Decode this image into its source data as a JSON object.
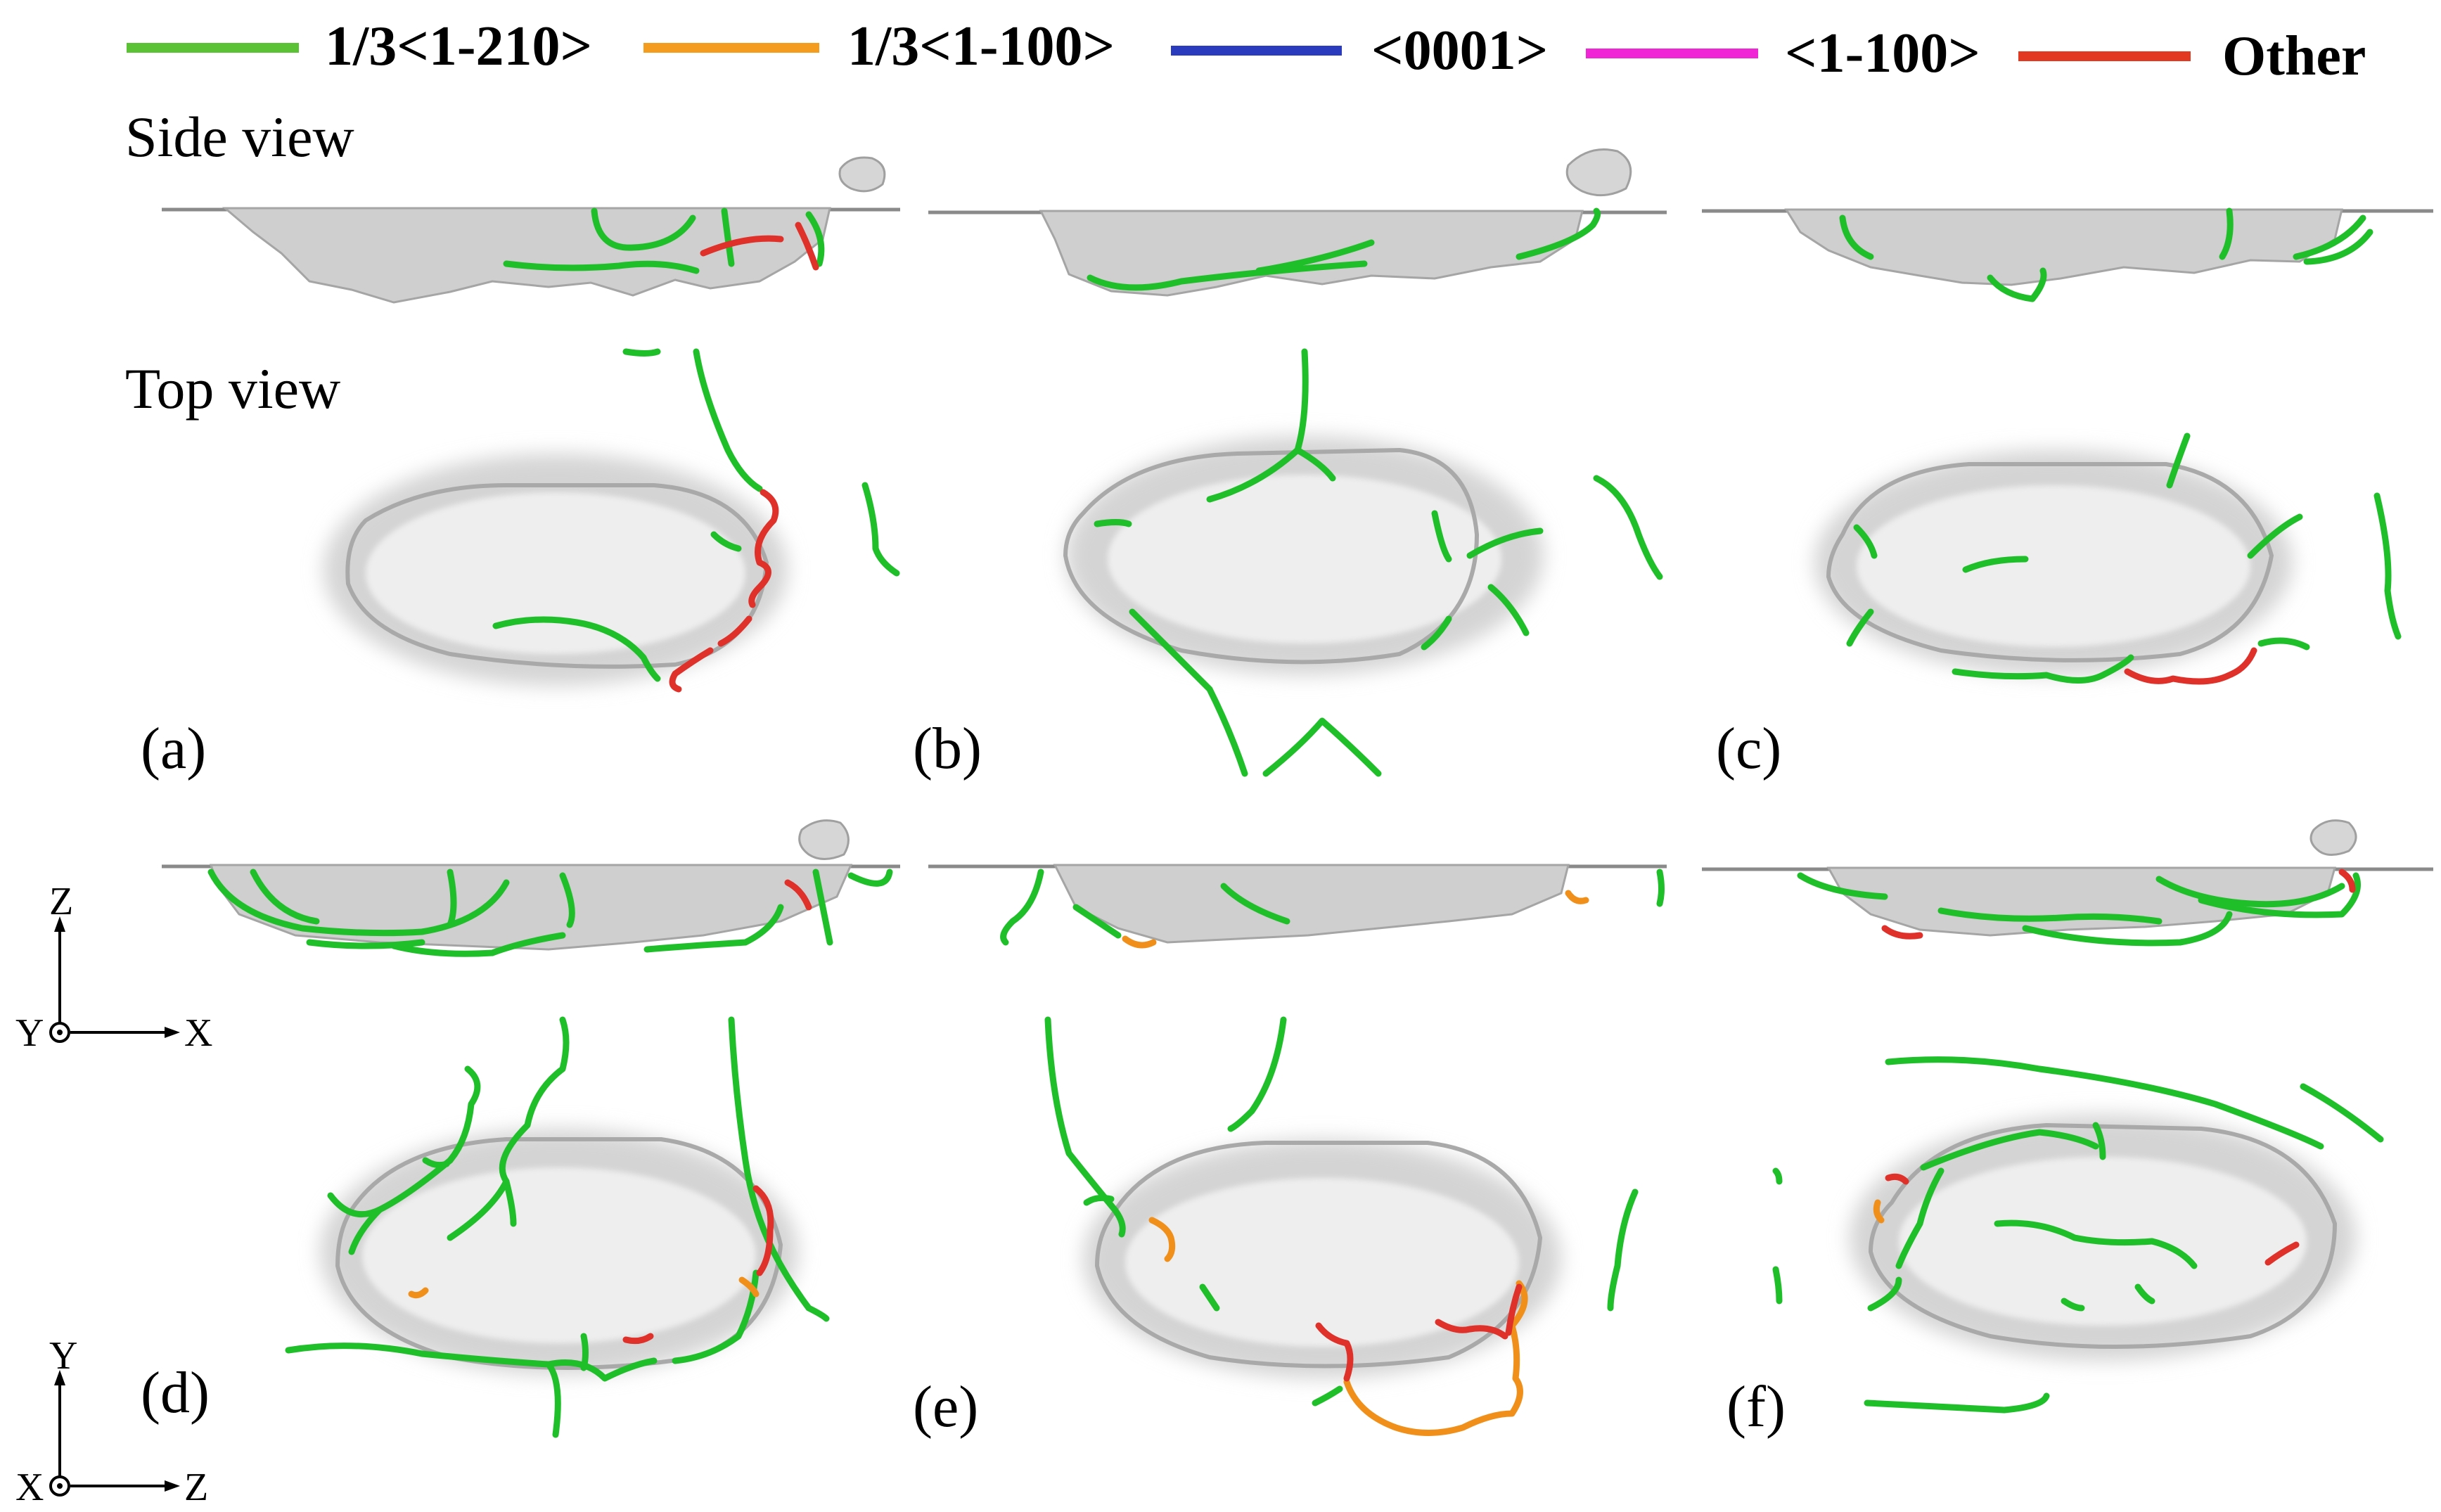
{
  "legend": {
    "items": [
      {
        "label": "1/3<1-210>",
        "color": "#5bc236"
      },
      {
        "label": "1/3<1-100>",
        "color": "#f39c1e"
      },
      {
        "label": "<0001>",
        "color": "#2b3bbd"
      },
      {
        "label": "<1-100>",
        "color": "#f025d6"
      },
      {
        "label": "Other",
        "color": "#e23a22"
      }
    ]
  },
  "views": {
    "side": "Side view",
    "top": "Top view"
  },
  "panels": [
    "(a)",
    "(b)",
    "(c)",
    "(d)",
    "(e)",
    "(f)"
  ],
  "axes": {
    "side": {
      "vertical": "Z",
      "horizontal": "X",
      "out_of_plane": "Y"
    },
    "top": {
      "vertical": "Y",
      "horizontal": "Z",
      "out_of_plane": "X"
    }
  },
  "colors": {
    "surface": "#c8c8c8",
    "surface_dark": "#9a9a9a",
    "green": "#1fbf2a",
    "orange": "#f0901a",
    "red": "#e0302a"
  }
}
